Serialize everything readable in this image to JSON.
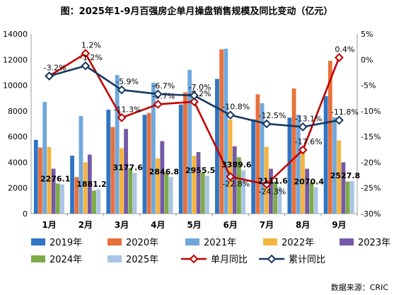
{
  "chart_data": {
    "type": "bar",
    "title": "图：2025年1-9月百强房企单月操盘销售规模及同比变动（亿元）",
    "categories": [
      "1月",
      "2月",
      "3月",
      "4月",
      "5月",
      "6月",
      "7月",
      "8月",
      "9月"
    ],
    "ylim": [
      0,
      14000
    ],
    "yticks": [
      "0",
      "2000",
      "4000",
      "6000",
      "8000",
      "10000",
      "12000",
      "14000"
    ],
    "y2lim": [
      -30,
      5
    ],
    "y2ticks": [
      "5%",
      "0%",
      "-5%",
      "-10%",
      "-15%",
      "-20%",
      "-25%",
      "-30%"
    ],
    "series": [
      {
        "name": "2019年",
        "color": "#2E75C4",
        "values": [
          5750,
          4520,
          8100,
          7700,
          8500,
          10500,
          7350,
          7480,
          9150
        ]
      },
      {
        "name": "2020年",
        "color": "#E8703A",
        "values": [
          5150,
          2850,
          6750,
          7850,
          9450,
          12800,
          9300,
          9750,
          11900
        ]
      },
      {
        "name": "2021年",
        "color": "#6FA8DC",
        "values": [
          8700,
          7600,
          10800,
          10200,
          11200,
          12850,
          8600,
          7700,
          7500
        ]
      },
      {
        "name": "2022年",
        "color": "#F5B43C",
        "values": [
          5200,
          4000,
          5100,
          4300,
          4500,
          7300,
          5200,
          4800,
          5700
        ]
      },
      {
        "name": "2023年",
        "color": "#7359A6",
        "values": [
          3500,
          4600,
          6600,
          5650,
          4800,
          5250,
          3500,
          3500,
          4000
        ]
      },
      {
        "name": "2024年",
        "color": "#7EAB47",
        "values": [
          2350,
          1800,
          3550,
          3150,
          3200,
          4400,
          2500,
          2450,
          2500
        ]
      },
      {
        "name": "2025年",
        "color": "#A9C4E6",
        "values": [
          2276.1,
          1881.2,
          3177.6,
          2846.8,
          2955.5,
          3389.6,
          2111.6,
          2070.4,
          2527.8
        ]
      }
    ],
    "data_labels": [
      "2276.1",
      "1881.2",
      "3177.6",
      "2846.8",
      "2955.5",
      "3389.6",
      "2111.6",
      "2070.4",
      "2527.8"
    ],
    "lines": [
      {
        "name": "单月同比",
        "color": "#C00000",
        "marker": "diamond-open",
        "values": [
          -3.2,
          1.2,
          -11.3,
          -8.7,
          -8.2,
          -22.8,
          -24.3,
          -17.6,
          0.4
        ],
        "labels": [
          "-3.2%",
          "1.2%",
          "-11.3%",
          "-8.7%",
          "-8.2%",
          "-22.8%",
          "-24.3%",
          "-17.6%",
          "0.4%"
        ]
      },
      {
        "name": "累计同比",
        "color": "#17375E",
        "marker": "diamond-open",
        "values": [
          -3.2,
          -1.2,
          -5.9,
          -6.7,
          -7.0,
          -10.8,
          -12.5,
          -13.1,
          -11.8
        ],
        "labels": [
          "",
          "-1.2%",
          "-5.9%",
          "-6.7%",
          "-7.0%",
          "-10.8%",
          "-12.5%",
          "-13.1%",
          "-11.8%"
        ]
      }
    ],
    "legend_position": "bottom",
    "grid": false
  },
  "source_note": "数据来源：CRIC"
}
